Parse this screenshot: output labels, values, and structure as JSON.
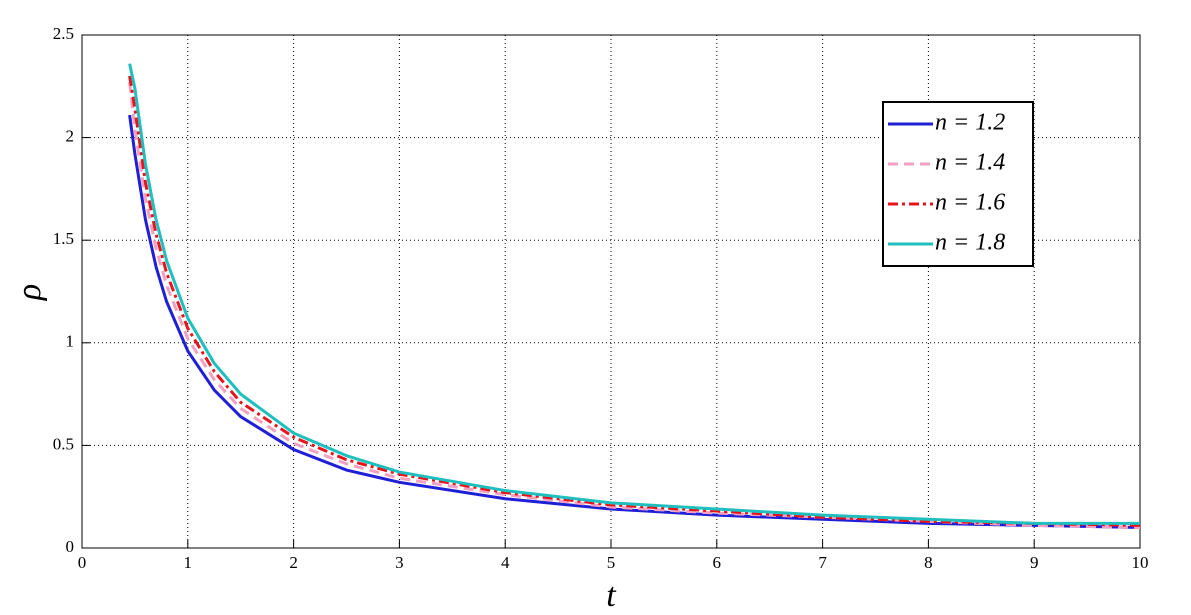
{
  "chart_data": {
    "type": "line",
    "xlabel": "t",
    "ylabel": "ρ",
    "x": [
      0.45,
      0.5,
      0.6,
      0.7,
      0.8,
      1,
      1.25,
      1.5,
      2,
      2.5,
      3,
      4,
      5,
      6,
      7,
      8,
      9,
      10
    ],
    "series": [
      {
        "name": "n = 1.2",
        "color": "#1f1fd6",
        "dash": "solid",
        "values": [
          2.11,
          1.92,
          1.6,
          1.37,
          1.2,
          0.96,
          0.77,
          0.64,
          0.48,
          0.38,
          0.32,
          0.24,
          0.19,
          0.16,
          0.14,
          0.12,
          0.11,
          0.1
        ]
      },
      {
        "name": "n = 1.4",
        "color": "#f4a0c0",
        "dash": "dashed",
        "values": [
          2.27,
          2.04,
          1.7,
          1.46,
          1.28,
          1.02,
          0.82,
          0.68,
          0.51,
          0.41,
          0.34,
          0.26,
          0.2,
          0.17,
          0.15,
          0.13,
          0.11,
          0.1
        ]
      },
      {
        "name": "n = 1.6",
        "color": "#e8141c",
        "dash": "dashdot",
        "values": [
          2.3,
          2.14,
          1.78,
          1.53,
          1.34,
          1.07,
          0.86,
          0.71,
          0.54,
          0.43,
          0.36,
          0.27,
          0.21,
          0.18,
          0.15,
          0.13,
          0.12,
          0.11
        ]
      },
      {
        "name": "n = 1.8",
        "color": "#1fbfbf",
        "dash": "solid",
        "values": [
          2.36,
          2.24,
          1.87,
          1.6,
          1.4,
          1.12,
          0.9,
          0.75,
          0.56,
          0.45,
          0.37,
          0.28,
          0.22,
          0.19,
          0.16,
          0.14,
          0.12,
          0.12
        ]
      }
    ],
    "xlim": [
      0,
      10
    ],
    "xticks": [
      0,
      1,
      2,
      3,
      4,
      5,
      6,
      7,
      8,
      9,
      10
    ],
    "ylim": [
      0,
      2.5
    ],
    "yticks": [
      0,
      0.5,
      1,
      1.5,
      2,
      2.5
    ],
    "grid": true,
    "legend": "upper right"
  }
}
